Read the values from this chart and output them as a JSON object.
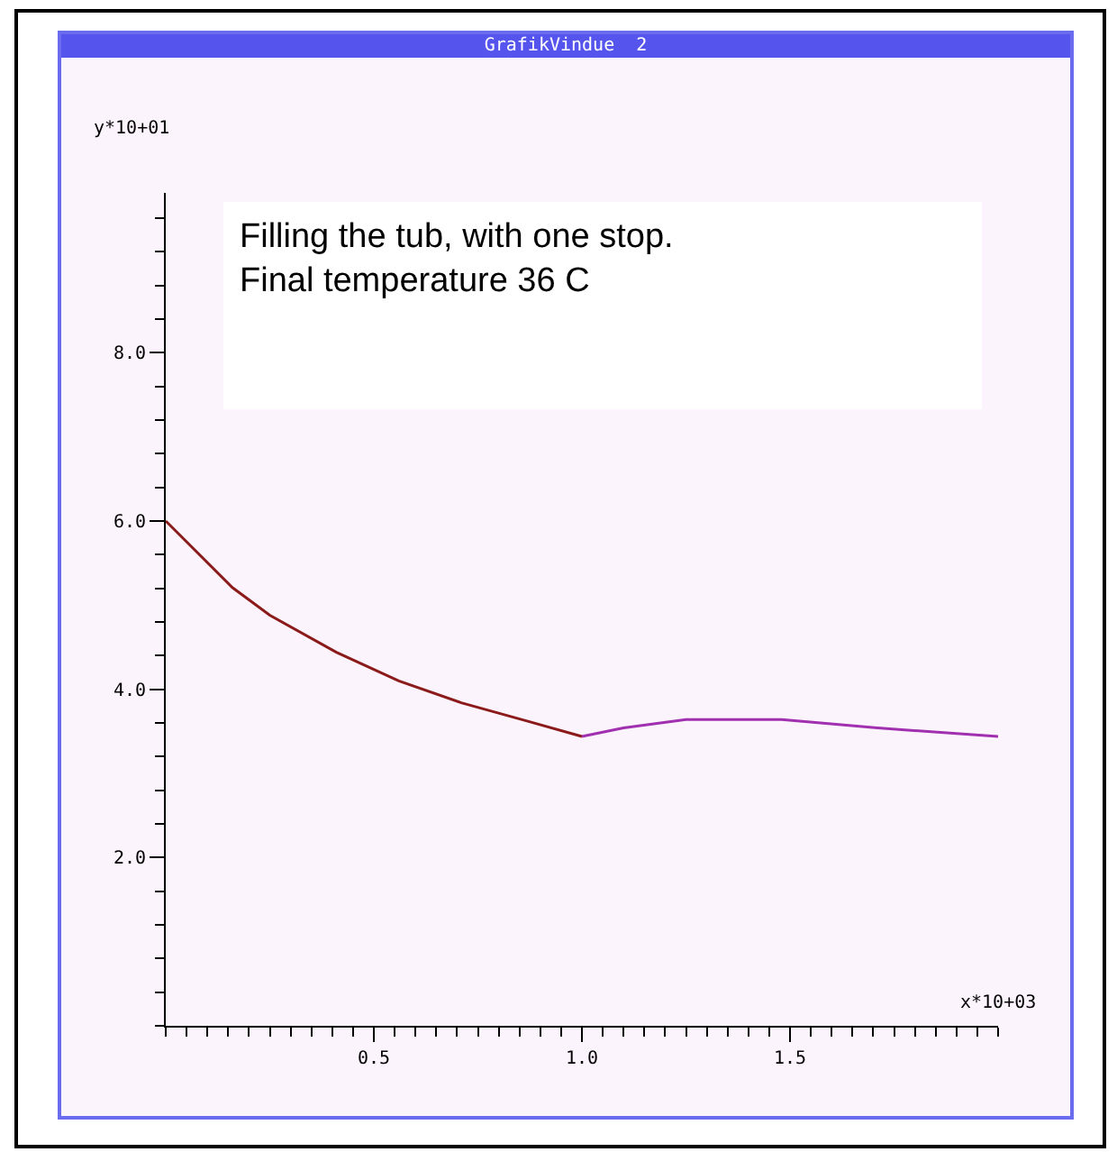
{
  "chart_data": {
    "type": "line",
    "title": "GrafikVindue  2",
    "xlabel": "x*10+03",
    "ylabel": "y*10+01",
    "annotations": [
      "Filling the tub, with one stop.",
      "Final temperature 36 C"
    ],
    "xlim": [
      0,
      2.0
    ],
    "ylim": [
      0,
      9.9
    ],
    "xticks": [
      {
        "value": 0.5,
        "label": "0.5"
      },
      {
        "value": 1,
        "label": "1.0"
      },
      {
        "value": 1.5,
        "label": "1.5"
      }
    ],
    "yticks": [
      {
        "value": 2,
        "label": "2.0"
      },
      {
        "value": 4,
        "label": "4.0"
      },
      {
        "value": 6,
        "label": "6.0"
      },
      {
        "value": 8,
        "label": "8.0"
      }
    ],
    "grid": false,
    "marker": "none",
    "line_style": "solid",
    "series": [
      {
        "color": "#8b1a1a",
        "x": [
          0,
          0.16,
          0.25,
          0.41,
          0.56,
          0.71,
          0.87,
          1.0
        ],
        "values": [
          6.0,
          5.21,
          4.88,
          4.44,
          4.1,
          3.84,
          3.62,
          3.44
        ]
      },
      {
        "color": "#a030b0",
        "x": [
          1.0,
          1.1,
          1.25,
          1.48,
          1.71,
          2.0
        ],
        "values": [
          3.44,
          3.54,
          3.64,
          3.64,
          3.54,
          3.44
        ]
      }
    ]
  }
}
